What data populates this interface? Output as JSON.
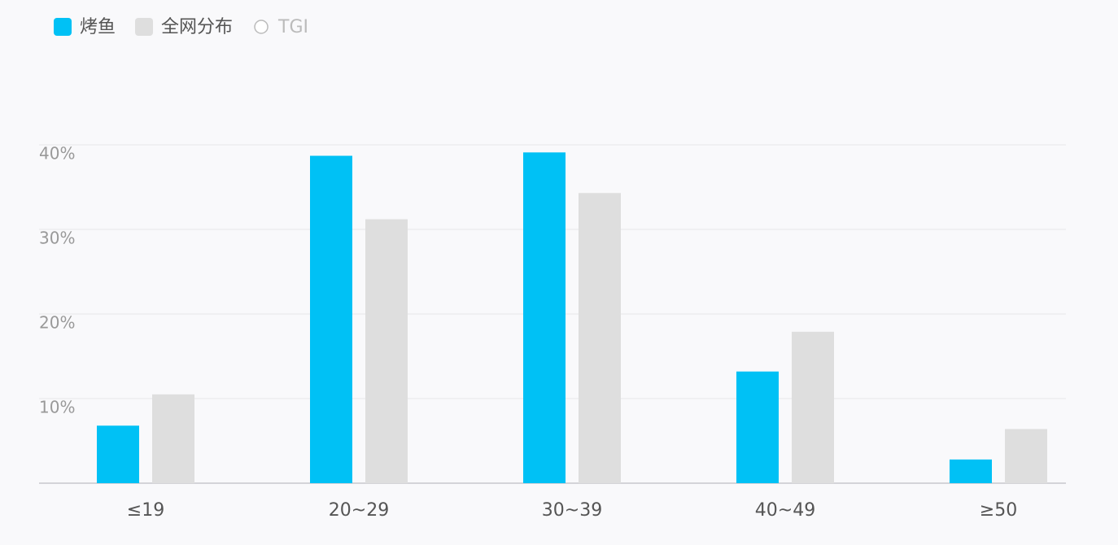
{
  "chart_data": {
    "type": "bar",
    "categories": [
      "≤19",
      "20~29",
      "30~39",
      "40~49",
      "≥50"
    ],
    "series": [
      {
        "name": "烤鱼",
        "color": "#00c1f5",
        "values": [
          6.8,
          38.7,
          39.1,
          13.2,
          2.8
        ]
      },
      {
        "name": "全网分布",
        "color": "#dedede",
        "values": [
          10.5,
          31.2,
          34.3,
          17.9,
          6.4
        ]
      },
      {
        "name": "TGI",
        "color": "#ffffff",
        "values": [
          null,
          null,
          null,
          null,
          null
        ]
      }
    ],
    "ylim": [
      0,
      40
    ],
    "yticks": [
      {
        "value": 10,
        "label": "10%"
      },
      {
        "value": 20,
        "label": "20%"
      },
      {
        "value": 30,
        "label": "30%"
      },
      {
        "value": 40,
        "label": "40%"
      }
    ],
    "grid": true
  }
}
